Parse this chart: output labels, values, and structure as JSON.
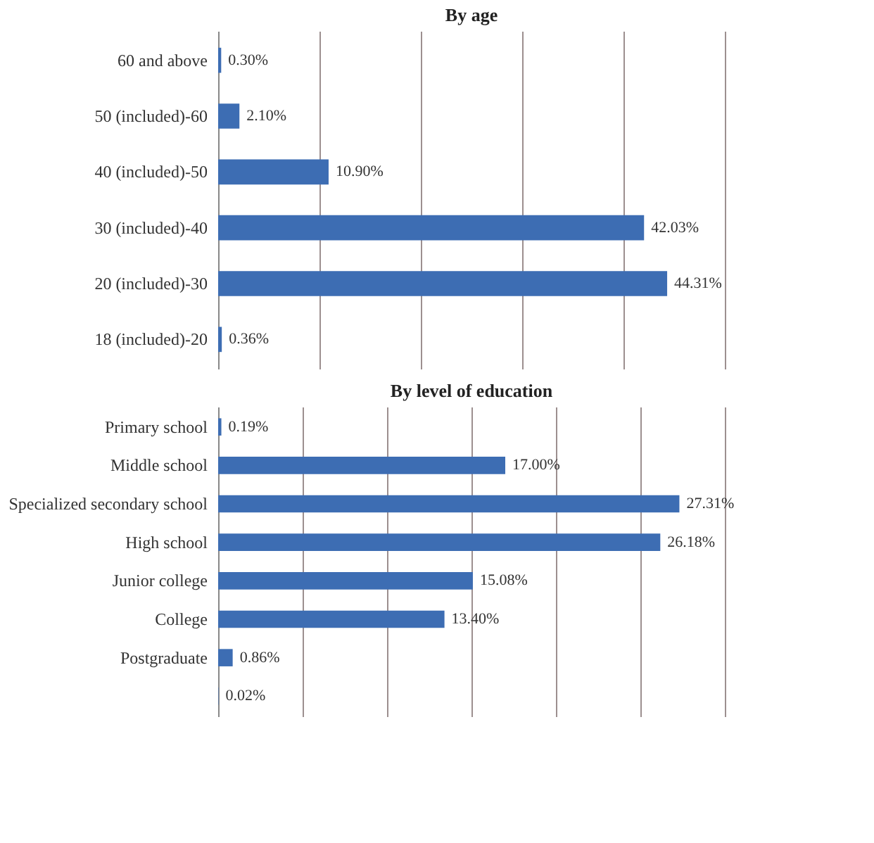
{
  "chart_data": [
    {
      "type": "bar",
      "orientation": "horizontal",
      "title": "By age",
      "categories": [
        "60 and above",
        "50 (included)-60",
        "40 (included)-50",
        "30 (included)-40",
        "20 (included)-30",
        "18 (included)-20"
      ],
      "values": [
        0.3,
        2.1,
        10.9,
        42.03,
        44.31,
        0.36
      ],
      "color": "#3d6db3",
      "value_labels": [
        "0.30%",
        "2.10%",
        "10.90%",
        "42.03%",
        "44.31%",
        "0.36%"
      ],
      "xlim": [
        0,
        50
      ],
      "xticks": [
        {
          "value": 0,
          "label": null
        },
        {
          "value": 10,
          "label": null
        },
        {
          "value": 20,
          "label": null
        },
        {
          "value": 30,
          "label": null
        },
        {
          "value": 40,
          "label": null
        },
        {
          "value": 50,
          "label": null
        }
      ],
      "grid": "x",
      "tick_labels": "y"
    },
    {
      "type": "bar",
      "orientation": "horizontal",
      "title": "By level of education",
      "categories": [
        "Primary school",
        "Middle school",
        "Specialized secondary school",
        "High school",
        "Junior college",
        "College",
        "Postgraduate",
        null
      ],
      "values": [
        0.19,
        17.0,
        27.31,
        26.18,
        15.08,
        13.4,
        0.86,
        0.02
      ],
      "color": "#3d6db3",
      "value_labels": [
        "0.19%",
        "17.00%",
        "27.31%",
        "26.18%",
        "15.08%",
        "13.40%",
        "0.86%",
        "0.02%"
      ],
      "xlim": [
        0,
        30
      ],
      "xticks": [
        {
          "value": 0,
          "label": null
        },
        {
          "value": 5,
          "label": null
        },
        {
          "value": 10,
          "label": null
        },
        {
          "value": 15,
          "label": null
        },
        {
          "value": 20,
          "label": null
        },
        {
          "value": 25,
          "label": null
        },
        {
          "value": 30,
          "label": null
        }
      ],
      "grid": "x",
      "tick_labels": "y"
    }
  ]
}
